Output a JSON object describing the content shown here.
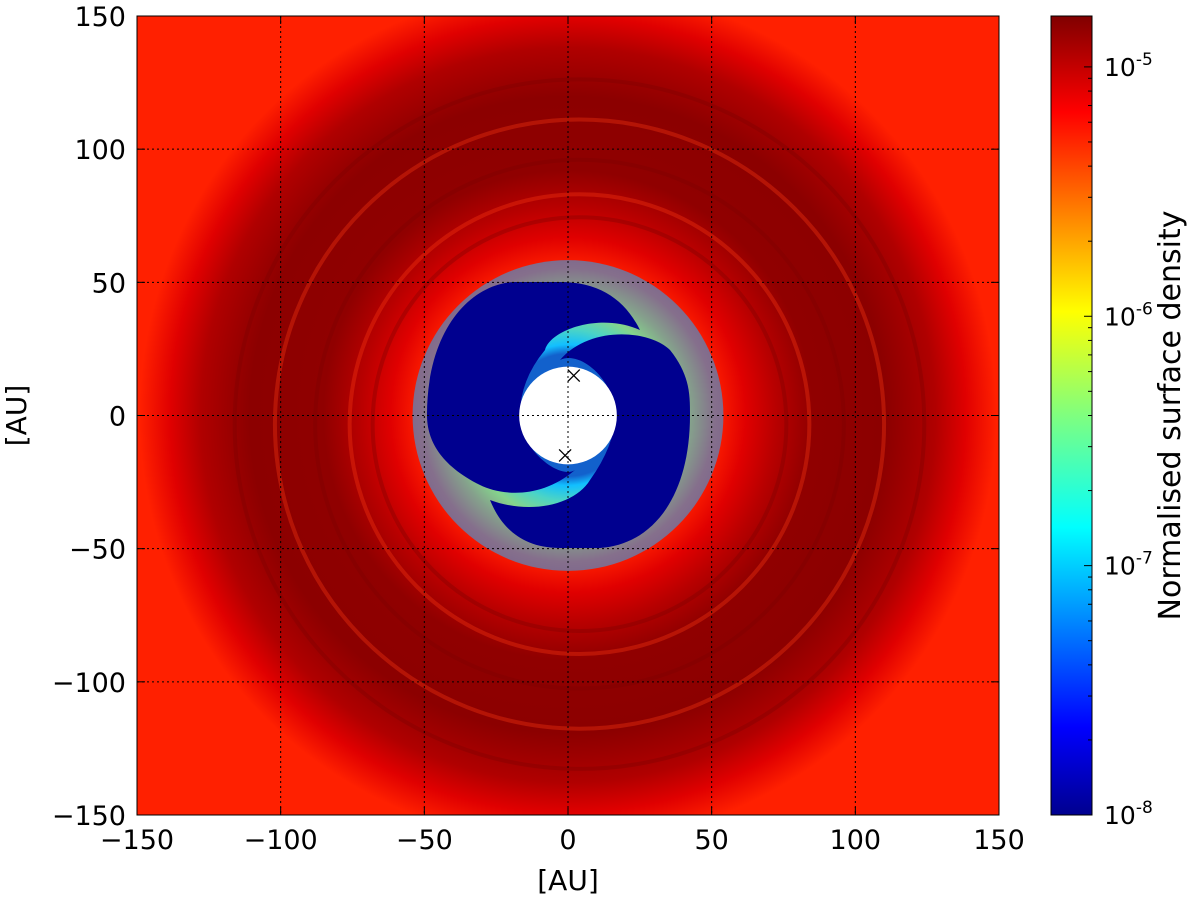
{
  "chart_data": {
    "type": "heatmap",
    "title": "",
    "xlabel": "[AU]",
    "ylabel": "[AU]",
    "xlim": [
      -150,
      150
    ],
    "ylim": [
      -150,
      150
    ],
    "xticks": [
      -150,
      -100,
      -50,
      0,
      50,
      100,
      150
    ],
    "yticks": [
      -150,
      -100,
      -50,
      0,
      50,
      100,
      150
    ],
    "xtick_labels": [
      "−150",
      "−100",
      "−50",
      "0",
      "50",
      "100",
      "150"
    ],
    "ytick_labels": [
      "−150",
      "−100",
      "−50",
      "0",
      "50",
      "100",
      "150"
    ],
    "grid": true,
    "colormap": "jet",
    "colorbar": {
      "label": "Normalised surface density",
      "scale": "log",
      "range": [
        1e-08,
        1.6e-05
      ],
      "tick_values": [
        1e-08,
        1e-07,
        1e-06,
        1e-05
      ],
      "tick_bases": [
        "10",
        "10",
        "10",
        "10"
      ],
      "tick_exponents": [
        "-8",
        "-7",
        "-6",
        "-5"
      ]
    },
    "features": {
      "inner_hole_radius_au": 17,
      "cavity_outer_radius_au": 52,
      "disc_peak_radius_au": 90,
      "outer_density_level": 1.3e-05
    },
    "markers": [
      {
        "symbol": "x",
        "x": 2,
        "y": 15
      },
      {
        "symbol": "x",
        "x": -1,
        "y": -15
      }
    ]
  }
}
